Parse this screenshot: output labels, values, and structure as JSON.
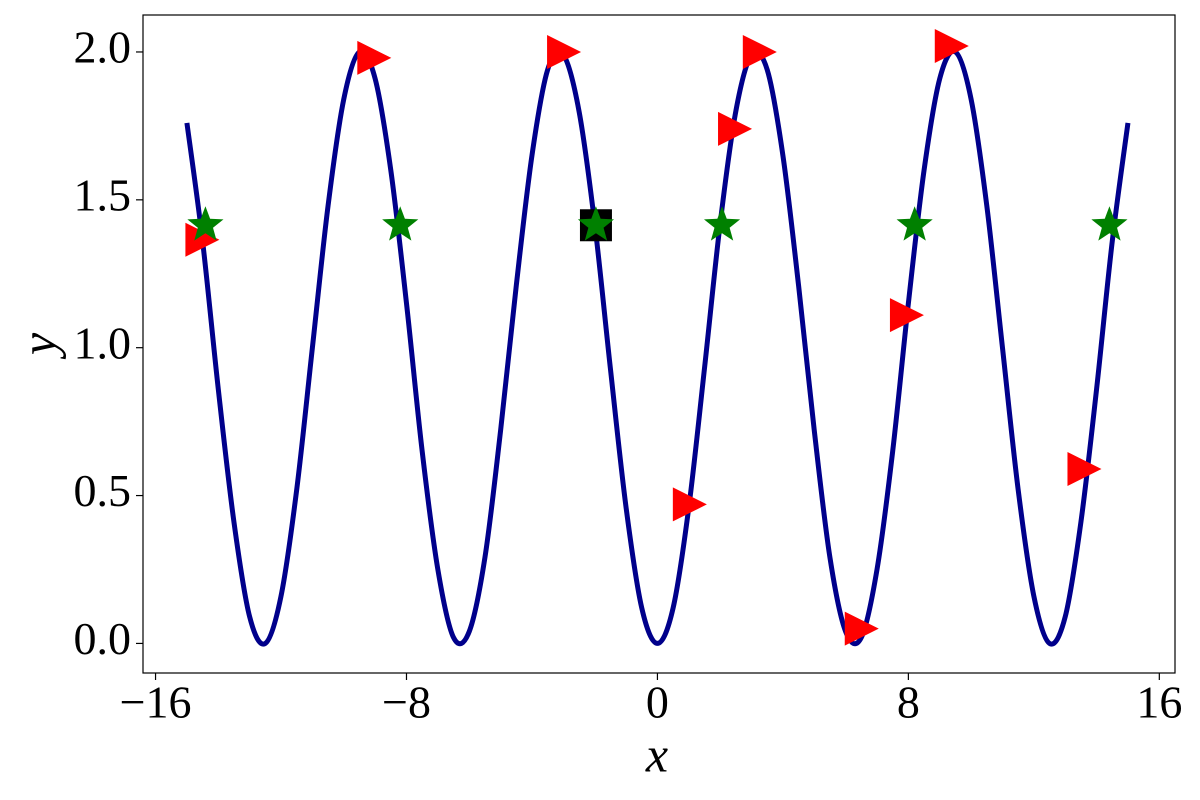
{
  "chart_data": {
    "type": "line",
    "xlabel": "x",
    "ylabel": "y",
    "xlim": [
      -16.4,
      16.5
    ],
    "ylim": [
      -0.1,
      2.125
    ],
    "xticks": [
      {
        "value": -16,
        "label": "−16"
      },
      {
        "value": -8,
        "label": "−8"
      },
      0,
      8,
      16
    ],
    "yticks": [
      {
        "value": 0,
        "label": "0.0"
      },
      0.5,
      {
        "value": 1,
        "label": "1.0"
      },
      1.5,
      {
        "value": 2,
        "label": "2.0"
      }
    ],
    "grid": false,
    "series": [
      {
        "style": "line",
        "color": "#00008b",
        "x": [
          -15,
          -14.5,
          -14,
          -13.5,
          -13,
          -12.5,
          -12,
          -11.5,
          -11,
          -10.5,
          -10,
          -9.5,
          -9,
          -8.5,
          -8,
          -7.5,
          -7,
          -6.5,
          -6,
          -5.5,
          -5,
          -4.5,
          -4,
          -3.5,
          -3,
          -2.5,
          -2,
          -1.5,
          -1,
          -0.5,
          0,
          0.5,
          1,
          1.5,
          2,
          2.5,
          3,
          3.5,
          4,
          4.5,
          5,
          5.5,
          6,
          6.5,
          7,
          7.5,
          8,
          8.5,
          9,
          9.5,
          10,
          10.5,
          11,
          11.5,
          12,
          12.5,
          13,
          13.5,
          14,
          14.5,
          15
        ],
        "values": [
          1.76,
          1.36,
          0.86,
          0.41,
          0.09,
          0.0,
          0.16,
          0.52,
          1.0,
          1.48,
          1.84,
          2.0,
          1.91,
          1.6,
          1.15,
          0.65,
          0.25,
          0.02,
          0.04,
          0.29,
          0.72,
          1.21,
          1.65,
          1.94,
          1.99,
          1.8,
          1.42,
          0.93,
          0.46,
          0.12,
          0,
          0.12,
          0.46,
          0.93,
          1.42,
          1.8,
          1.99,
          1.94,
          1.65,
          1.21,
          0.72,
          0.29,
          0.04,
          0.02,
          0.25,
          0.65,
          1.15,
          1.6,
          1.91,
          2.0,
          1.84,
          1.48,
          1.0,
          0.52,
          0.16,
          0.0,
          0.09,
          0.41,
          0.86,
          1.36,
          1.76
        ]
      },
      {
        "style": "marker",
        "marker": "triangle",
        "color": "#ff0000",
        "x": [
          -14.57,
          -9.09,
          -3.04,
          0.97,
          2.41,
          3.2,
          6.45,
          7.89,
          9.32,
          13.55
        ],
        "values": [
          1.365,
          1.98,
          2.0,
          0.47,
          1.74,
          2.0,
          0.05,
          1.11,
          2.02,
          0.59
        ]
      },
      {
        "style": "marker",
        "marker": "square",
        "color": "#000000",
        "x": [
          -1.96
        ],
        "values": [
          1.414
        ]
      },
      {
        "style": "marker",
        "marker": "star",
        "color": "#008000",
        "x": [
          -14.41,
          -8.2,
          -1.96,
          2.06,
          8.2,
          14.41
        ],
        "values": [
          1.414,
          1.414,
          1.414,
          1.414,
          1.414,
          1.414
        ]
      }
    ]
  }
}
